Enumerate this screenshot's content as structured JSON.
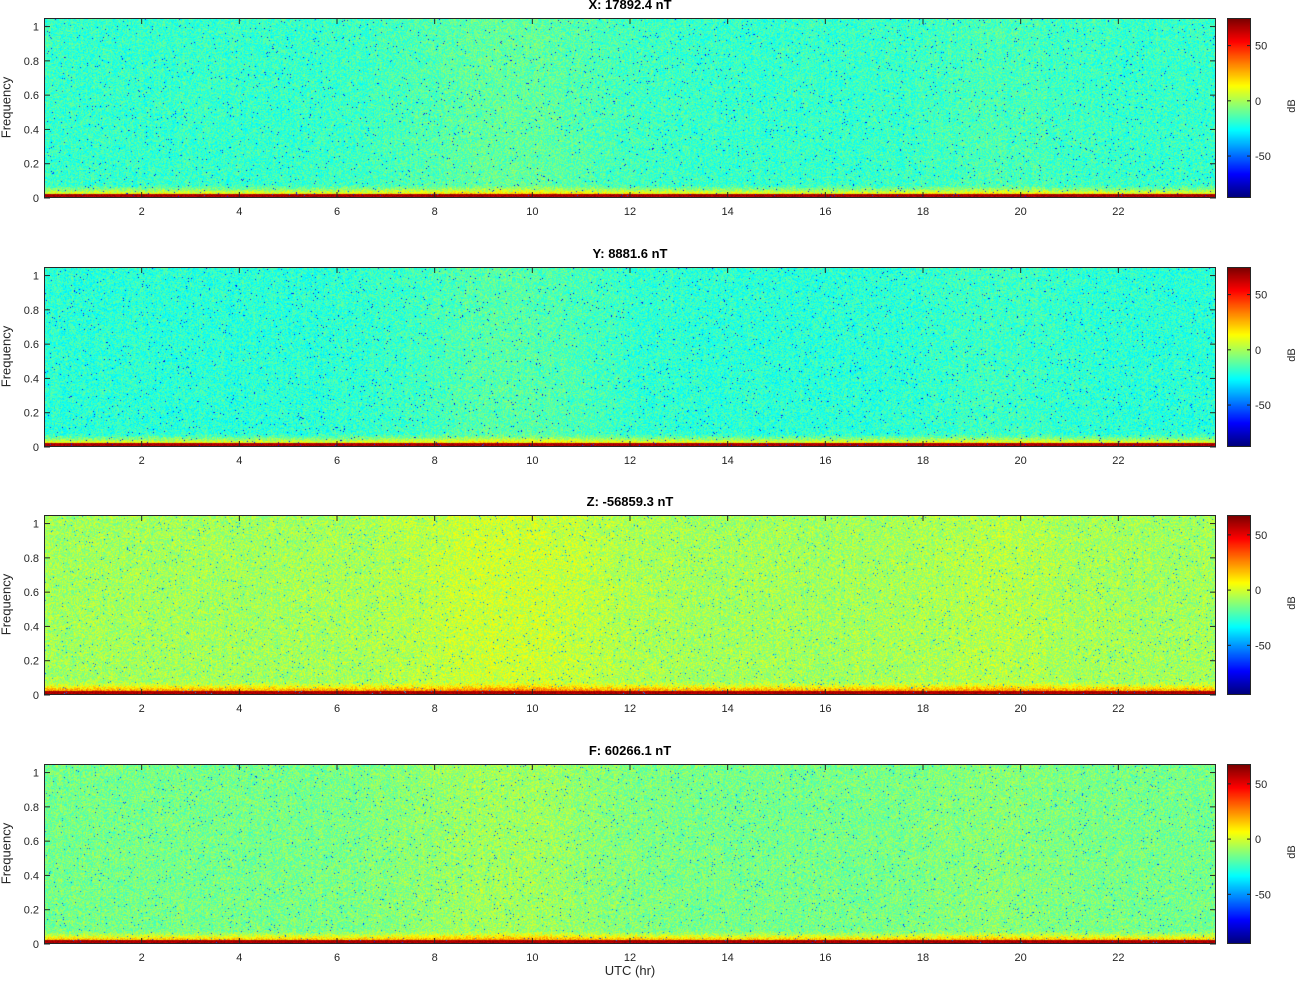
{
  "chart_data": [
    {
      "type": "heatmap",
      "title": "X: 17892.4 nT",
      "xlabel": "",
      "ylabel": "Frequency",
      "xlim": [
        0,
        24
      ],
      "ylim": [
        0,
        1.05
      ],
      "x_ticks": [
        2,
        4,
        6,
        8,
        10,
        12,
        14,
        16,
        18,
        20,
        22
      ],
      "y_ticks": [
        0,
        0.2,
        0.4,
        0.6,
        0.8,
        1
      ],
      "colorbar": {
        "label": "dB",
        "range": [
          -88,
          75
        ],
        "ticks": [
          -50,
          0,
          50
        ]
      },
      "background_level_db": -18
    },
    {
      "type": "heatmap",
      "title": "Y: 8881.6 nT",
      "xlabel": "",
      "ylabel": "Frequency",
      "xlim": [
        0,
        24
      ],
      "ylim": [
        0,
        1.05
      ],
      "x_ticks": [
        2,
        4,
        6,
        8,
        10,
        12,
        14,
        16,
        18,
        20,
        22
      ],
      "y_ticks": [
        0,
        0.2,
        0.4,
        0.6,
        0.8,
        1
      ],
      "colorbar": {
        "label": "dB",
        "range": [
          -88,
          75
        ],
        "ticks": [
          -50,
          0,
          50
        ]
      },
      "background_level_db": -20
    },
    {
      "type": "heatmap",
      "title": "Z: -56859.3 nT",
      "xlabel": "",
      "ylabel": "Frequency",
      "xlim": [
        0,
        24
      ],
      "ylim": [
        0,
        1.05
      ],
      "x_ticks": [
        2,
        4,
        6,
        8,
        10,
        12,
        14,
        16,
        18,
        20,
        22
      ],
      "y_ticks": [
        0,
        0.2,
        0.4,
        0.6,
        0.8,
        1
      ],
      "colorbar": {
        "label": "dB",
        "range": [
          -95,
          68
        ],
        "ticks": [
          -50,
          0,
          50
        ]
      },
      "background_level_db": -8
    },
    {
      "type": "heatmap",
      "title": "F: 60266.1 nT",
      "xlabel": "UTC (hr)",
      "ylabel": "Frequency",
      "xlim": [
        0,
        24
      ],
      "ylim": [
        0,
        1.05
      ],
      "x_ticks": [
        2,
        4,
        6,
        8,
        10,
        12,
        14,
        16,
        18,
        20,
        22
      ],
      "y_ticks": [
        0,
        0.2,
        0.4,
        0.6,
        0.8,
        1
      ],
      "colorbar": {
        "label": "dB",
        "range": [
          -95,
          68
        ],
        "ticks": [
          -50,
          0,
          50
        ]
      },
      "background_level_db": -15
    }
  ]
}
